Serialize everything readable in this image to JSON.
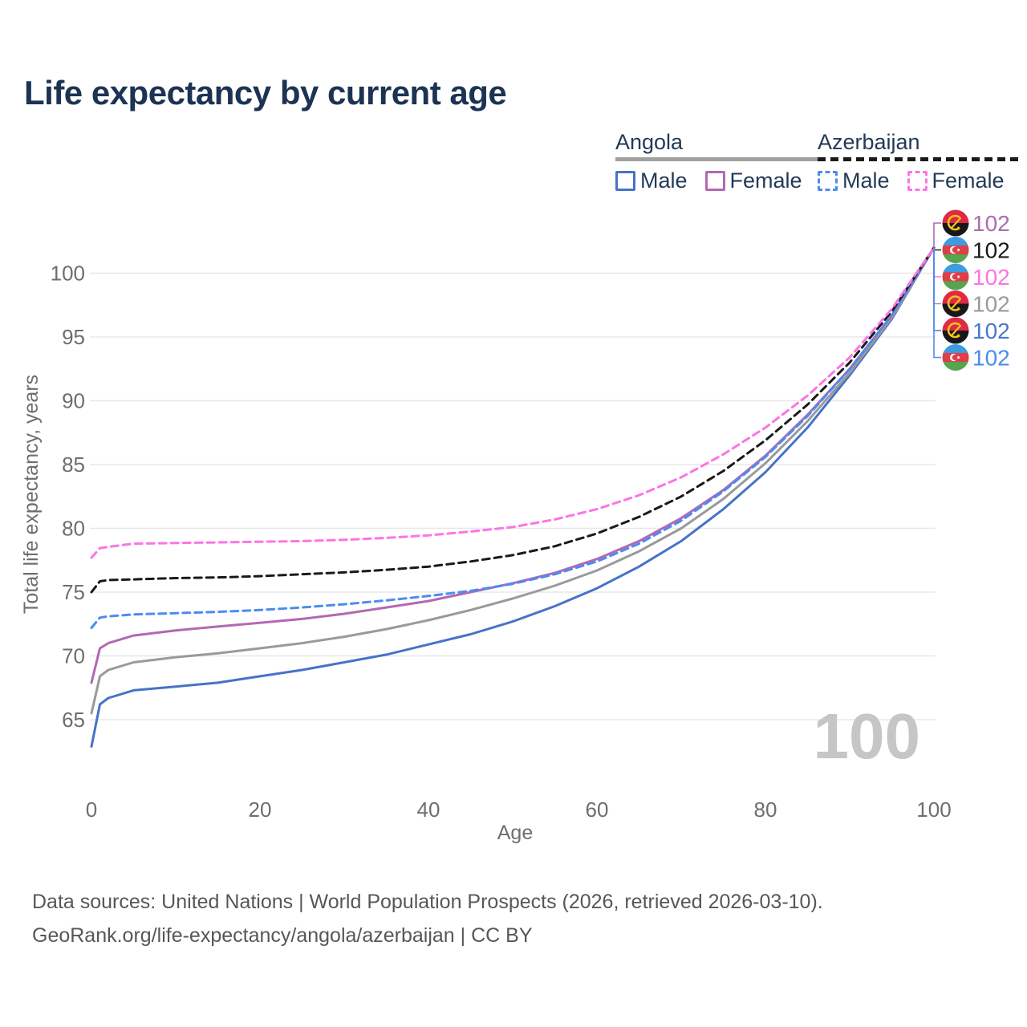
{
  "title": "Life expectancy by current age",
  "legend": {
    "groups": [
      {
        "country": "Angola",
        "line_style": "solid",
        "underline_color": "#a0a0a0",
        "items": [
          {
            "label": "Male",
            "color": "#4673c8"
          },
          {
            "label": "Female",
            "color": "#b269b2"
          }
        ]
      },
      {
        "country": "Azerbaijan",
        "line_style": "dashed",
        "underline_color": "#1a1a1a",
        "items": [
          {
            "label": "Male",
            "color": "#4b8cf0"
          },
          {
            "label": "Female",
            "color": "#fc74e4"
          }
        ]
      }
    ]
  },
  "watermark": "100",
  "footer": {
    "line1": "Data sources: United Nations | World Population Prospects (2026, retrieved 2026-03-10).",
    "line2": "GeoRank.org/life-expectancy/angola/azerbaijan | CC BY"
  },
  "chart_data": {
    "type": "line",
    "title": "Life expectancy by current age",
    "xlabel": "Age",
    "ylabel": "Total life expectancy, years",
    "xlim": [
      0,
      100
    ],
    "ylim": [
      62,
      103
    ],
    "xticks": [
      0,
      20,
      40,
      60,
      80,
      100
    ],
    "yticks": [
      65,
      70,
      75,
      80,
      85,
      90,
      95,
      100
    ],
    "grid": "horizontal-only",
    "legend_position": "top-right",
    "ages": [
      0,
      1,
      2,
      5,
      10,
      15,
      20,
      25,
      30,
      35,
      40,
      45,
      50,
      55,
      60,
      65,
      70,
      75,
      80,
      85,
      90,
      95,
      100
    ],
    "series": [
      {
        "id": "angola-male",
        "name": "Angola Male",
        "country": "Angola",
        "sex": "Male",
        "style": "solid",
        "color": "#4673c8",
        "values": [
          62.9,
          66.2,
          66.7,
          67.3,
          67.6,
          67.9,
          68.4,
          68.9,
          69.5,
          70.1,
          70.9,
          71.7,
          72.7,
          73.9,
          75.3,
          77.0,
          79.0,
          81.5,
          84.4,
          87.9,
          92.0,
          96.4,
          102
        ]
      },
      {
        "id": "angola-both",
        "name": "Angola",
        "country": "Angola",
        "sex": "All",
        "style": "solid",
        "color": "#9a9a9a",
        "values": [
          65.5,
          68.4,
          68.9,
          69.5,
          69.9,
          70.2,
          70.6,
          71.0,
          71.5,
          72.1,
          72.8,
          73.6,
          74.5,
          75.5,
          76.7,
          78.2,
          80.0,
          82.3,
          85.1,
          88.4,
          92.2,
          96.5,
          102
        ]
      },
      {
        "id": "angola-female",
        "name": "Angola Female",
        "country": "Angola",
        "sex": "Female",
        "style": "solid",
        "color": "#b269b2",
        "values": [
          67.9,
          70.6,
          71.0,
          71.6,
          72.0,
          72.3,
          72.6,
          72.9,
          73.3,
          73.8,
          74.3,
          75.0,
          75.7,
          76.5,
          77.6,
          79.0,
          80.8,
          83.0,
          85.7,
          88.9,
          92.5,
          96.7,
          102
        ]
      },
      {
        "id": "azerbaijan-male",
        "name": "Azerbaijan Male",
        "country": "Azerbaijan",
        "sex": "Male",
        "style": "dashed",
        "color": "#4b8cf0",
        "values": [
          72.2,
          73.0,
          73.1,
          73.25,
          73.35,
          73.45,
          73.6,
          73.8,
          74.05,
          74.35,
          74.7,
          75.1,
          75.65,
          76.4,
          77.4,
          78.8,
          80.6,
          82.9,
          85.6,
          88.8,
          92.5,
          96.7,
          102
        ]
      },
      {
        "id": "azerbaijan-both",
        "name": "Azerbaijan",
        "country": "Azerbaijan",
        "sex": "All",
        "style": "dashed",
        "color": "#1a1a1a",
        "values": [
          75.0,
          75.85,
          75.95,
          76.0,
          76.1,
          76.15,
          76.25,
          76.4,
          76.55,
          76.75,
          77.0,
          77.4,
          77.9,
          78.6,
          79.6,
          80.9,
          82.5,
          84.5,
          86.9,
          89.7,
          93.0,
          97.0,
          102
        ]
      },
      {
        "id": "azerbaijan-female",
        "name": "Azerbaijan Female",
        "country": "Azerbaijan",
        "sex": "Female",
        "style": "dashed",
        "color": "#fc74e4",
        "values": [
          77.7,
          78.45,
          78.55,
          78.8,
          78.85,
          78.9,
          78.95,
          79.0,
          79.1,
          79.25,
          79.45,
          79.75,
          80.1,
          80.7,
          81.5,
          82.6,
          84.0,
          85.8,
          87.9,
          90.4,
          93.4,
          97.2,
          102
        ]
      }
    ],
    "end_labels": [
      {
        "series": "angola-female",
        "country": "Angola",
        "value": "102",
        "color": "#ad6cad"
      },
      {
        "series": "azerbaijan-both",
        "country": "Azerbaijan",
        "value": "102",
        "color": "#1a1a1a"
      },
      {
        "series": "azerbaijan-female",
        "country": "Azerbaijan",
        "value": "102",
        "color": "#fc74e4"
      },
      {
        "series": "angola-both",
        "country": "Angola",
        "value": "102",
        "color": "#9a9a9a"
      },
      {
        "series": "angola-male",
        "country": "Angola",
        "value": "102",
        "color": "#4a77c9"
      },
      {
        "series": "azerbaijan-male",
        "country": "Azerbaijan",
        "value": "102",
        "color": "#4b8cf0"
      }
    ]
  }
}
